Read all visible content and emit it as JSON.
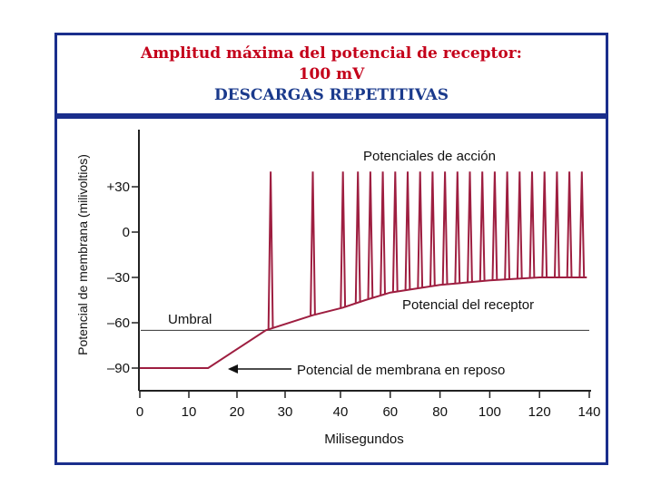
{
  "header": {
    "line1": "Amplitud máxima del potencial de receptor:",
    "line2": "100 mV",
    "line3": "DESCARGAS REPETITIVAS"
  },
  "colors": {
    "title_red": "#c4001a",
    "title_blue": "#1a3a8c",
    "border": "#1a2e8c",
    "trace": "#9e1e40"
  },
  "chart_data": {
    "type": "line",
    "xlabel": "Milisegundos",
    "ylabel": "Potencial de membrana (milivoltios)",
    "x_ticks": [
      "0",
      "10",
      "20",
      "30",
      "40",
      "60",
      "80",
      "100",
      "120",
      "140"
    ],
    "y_ticks": [
      "+30",
      "0",
      "–30",
      "–60",
      "–90"
    ],
    "ylim": [
      -105,
      55
    ],
    "threshold": {
      "label": "Umbral",
      "value": -65
    },
    "annotations": {
      "action_potentials": "Potenciales de acción",
      "receptor_potential": "Potencial del receptor",
      "resting_potential": "Potencial de membrana en reposo"
    },
    "series": [
      {
        "values_ms_mv": [
          [
            0,
            -90
          ],
          [
            14,
            -90
          ],
          [
            26,
            -65
          ],
          [
            35,
            -55
          ],
          [
            41,
            -50
          ],
          [
            50,
            -45
          ],
          [
            60,
            -40
          ],
          [
            80,
            -35
          ],
          [
            100,
            -32
          ],
          [
            120,
            -30
          ],
          [
            139,
            -30
          ]
        ],
        "spike_times_ms": [
          27,
          35,
          41,
          47,
          52,
          57,
          62,
          67,
          72,
          77,
          82,
          87,
          92,
          97,
          102,
          107,
          112,
          117,
          122,
          127,
          132,
          137
        ],
        "spike_peak_mv": 40
      }
    ]
  }
}
